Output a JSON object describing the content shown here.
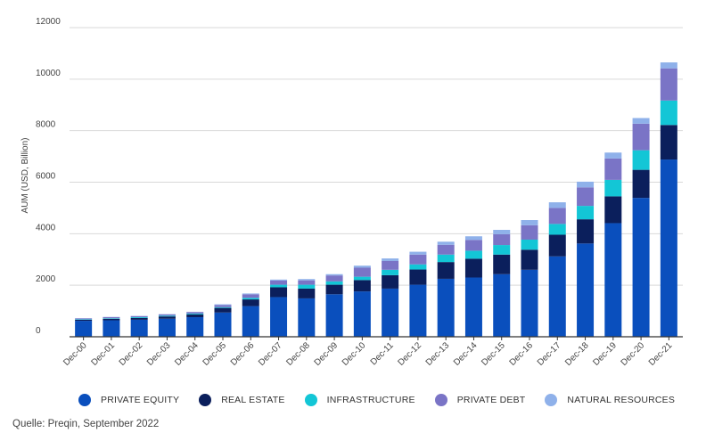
{
  "chart_data": {
    "type": "bar",
    "stacked": true,
    "categories": [
      "Dec-00",
      "Dec-01",
      "Dec-02",
      "Dec-03",
      "Dec-04",
      "Dec-05",
      "Dec-06",
      "Dec-07",
      "Dec-08",
      "Dec-09",
      "Dec-10",
      "Dec-11",
      "Dec-12",
      "Dec-13",
      "Dec-14",
      "Dec-15",
      "Dec-16",
      "Dec-17",
      "Dec-18",
      "Dec-19",
      "Dec-20",
      "Dec-21"
    ],
    "series": [
      {
        "name": "PRIVATE EQUITY",
        "color": "#0a4fbd",
        "values": [
          620,
          640,
          660,
          700,
          760,
          940,
          1190,
          1540,
          1490,
          1650,
          1760,
          1870,
          2020,
          2250,
          2300,
          2430,
          2600,
          3120,
          3620,
          4410,
          5390,
          6880
        ]
      },
      {
        "name": "REAL ESTATE",
        "color": "#0b1f5c",
        "values": [
          40,
          60,
          70,
          90,
          110,
          180,
          260,
          380,
          380,
          370,
          440,
          520,
          590,
          650,
          730,
          760,
          780,
          840,
          940,
          1040,
          1090,
          1340
        ]
      },
      {
        "name": "INFRASTRUCTURE",
        "color": "#13c6d6",
        "values": [
          20,
          20,
          30,
          30,
          30,
          30,
          60,
          100,
          150,
          130,
          130,
          210,
          200,
          290,
          310,
          370,
          390,
          420,
          520,
          640,
          760,
          950
        ]
      },
      {
        "name": "PRIVATE DEBT",
        "color": "#7a74c6",
        "values": [
          30,
          40,
          40,
          50,
          60,
          80,
          140,
          160,
          170,
          230,
          350,
          340,
          380,
          380,
          420,
          420,
          560,
          620,
          720,
          830,
          1030,
          1250
        ]
      },
      {
        "name": "NATURAL RESOURCES",
        "color": "#8fb1ea",
        "values": [
          10,
          10,
          10,
          10,
          10,
          30,
          30,
          40,
          50,
          50,
          80,
          100,
          110,
          120,
          140,
          170,
          200,
          220,
          220,
          230,
          220,
          230
        ]
      }
    ],
    "ylabel": "AUM (USD, Billion)",
    "xlabel": "",
    "ylim": [
      0,
      12000
    ],
    "yticks": [
      0,
      2000,
      4000,
      6000,
      8000,
      10000,
      12000
    ],
    "grid": true,
    "legend_position": "bottom"
  },
  "source": "Quelle: Preqin, September 2022"
}
